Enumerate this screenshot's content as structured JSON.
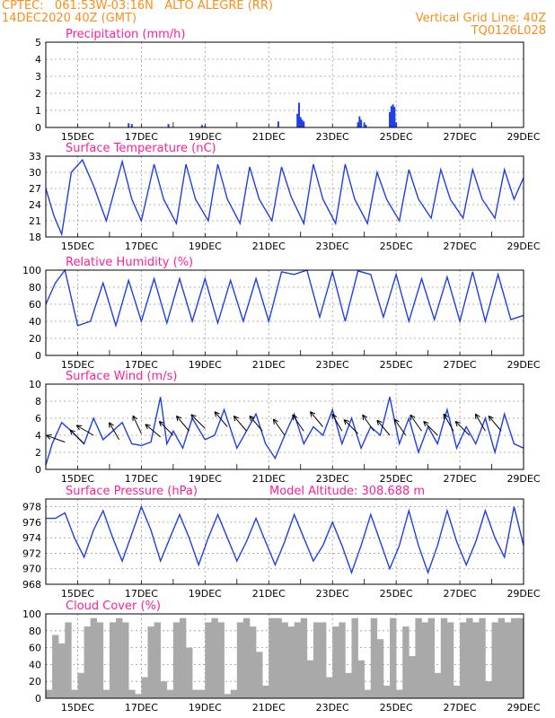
{
  "header": {
    "line1": "CPTEC:   061:53W-03:16N   ALTO ALEGRE (RR)",
    "line2": "14DEC2020 40Z (GMT)",
    "right1": "Vertical Grid Line: 40Z",
    "right2": "TQ0126L028"
  },
  "colors": {
    "series": "#1f3fe6",
    "clouds": "#a9a9a9",
    "title": "#ff1f9a",
    "header": "#ff8c1a"
  },
  "chart_data": [
    {
      "type": "bar",
      "title": "Precipitation (mm/h)",
      "x_ticks": [
        "15DEC",
        "17DEC",
        "19DEC",
        "21DEC",
        "23DEC",
        "25DEC",
        "27DEC",
        "29DEC"
      ],
      "ylim": [
        0,
        5
      ],
      "y_ticks": [
        0,
        1,
        2,
        3,
        4,
        5
      ],
      "grid": true,
      "x": [
        16.6,
        16.7,
        17.85,
        18.9,
        19.0,
        21.3,
        21.9,
        21.95,
        22.0,
        22.05,
        22.1,
        23.8,
        23.85,
        23.9,
        24.0,
        24.05,
        24.8,
        24.85,
        24.9,
        24.95,
        25.0
      ],
      "values": [
        0.25,
        0.2,
        0.2,
        0.15,
        0.1,
        0.35,
        0.8,
        1.45,
        0.6,
        0.45,
        0.35,
        0.3,
        0.65,
        0.45,
        0.25,
        0.15,
        0.9,
        1.25,
        1.35,
        1.2,
        0.3
      ]
    },
    {
      "type": "line",
      "title": "Surface Temperature (nC)",
      "x_ticks": [
        "15DEC",
        "17DEC",
        "19DEC",
        "21DEC",
        "23DEC",
        "25DEC",
        "27DEC",
        "29DEC"
      ],
      "ylim": [
        18,
        33
      ],
      "y_ticks": [
        18,
        21,
        24,
        27,
        30,
        33
      ],
      "grid": true,
      "series": [
        {
          "x": [
            14.0,
            14.25,
            14.5,
            14.8,
            15.15,
            15.5,
            15.9,
            16.4,
            16.7,
            17.0,
            17.4,
            17.7,
            18.1,
            18.4,
            18.7,
            19.1,
            19.4,
            19.7,
            20.1,
            20.4,
            20.7,
            21.1,
            21.4,
            21.7,
            22.1,
            22.4,
            22.7,
            23.1,
            23.4,
            23.7,
            24.1,
            24.4,
            24.7,
            25.1,
            25.4,
            25.7,
            26.1,
            26.4,
            26.7,
            27.1,
            27.4,
            27.7,
            28.1,
            28.4,
            28.7,
            29.0
          ],
          "y": [
            27,
            22,
            18.5,
            30,
            32.3,
            27.5,
            21,
            32,
            25,
            21,
            31.5,
            25,
            20.5,
            31.5,
            25,
            21,
            31.5,
            25,
            20.5,
            31,
            25,
            21,
            31,
            25.5,
            20.5,
            31.5,
            25,
            20.5,
            31.5,
            25,
            20.5,
            30,
            25,
            21,
            30.5,
            25,
            21.5,
            30.5,
            25,
            21.5,
            30.5,
            25,
            21.5,
            30.5,
            25,
            29
          ]
        }
      ]
    },
    {
      "type": "line",
      "title": "Relative Humidity (%)",
      "x_ticks": [
        "15DEC",
        "17DEC",
        "19DEC",
        "21DEC",
        "23DEC",
        "25DEC",
        "27DEC",
        "29DEC"
      ],
      "ylim": [
        0,
        100
      ],
      "y_ticks": [
        0,
        20,
        40,
        60,
        80,
        100
      ],
      "grid": true,
      "series": [
        {
          "x": [
            14.0,
            14.3,
            14.6,
            15.0,
            15.4,
            15.8,
            16.2,
            16.6,
            17.0,
            17.4,
            17.8,
            18.2,
            18.6,
            19.0,
            19.4,
            19.8,
            20.2,
            20.6,
            21.0,
            21.4,
            21.8,
            22.2,
            22.6,
            23.0,
            23.4,
            23.8,
            24.2,
            24.6,
            25.0,
            25.4,
            25.8,
            26.2,
            26.6,
            27.0,
            27.4,
            27.8,
            28.2,
            28.6,
            29.0
          ],
          "y": [
            60,
            85,
            100,
            35,
            40,
            85,
            35,
            88,
            40,
            90,
            38,
            90,
            40,
            90,
            38,
            88,
            40,
            90,
            40,
            98,
            95,
            100,
            45,
            98,
            40,
            99,
            95,
            45,
            95,
            40,
            90,
            42,
            92,
            40,
            98,
            40,
            95,
            42,
            47
          ]
        }
      ]
    },
    {
      "type": "line",
      "title": "Surface Wind (m/s)",
      "x_ticks": [
        "15DEC",
        "17DEC",
        "19DEC",
        "21DEC",
        "23DEC",
        "25DEC",
        "27DEC",
        "29DEC"
      ],
      "ylim": [
        0,
        10
      ],
      "y_ticks": [
        0,
        2,
        4,
        6,
        8,
        10
      ],
      "grid": true,
      "series": [
        {
          "x": [
            14.0,
            14.2,
            14.5,
            14.8,
            15.2,
            15.5,
            15.8,
            16.1,
            16.4,
            16.7,
            17.0,
            17.3,
            17.6,
            17.8,
            18.0,
            18.3,
            18.6,
            19.0,
            19.3,
            19.6,
            20.0,
            20.3,
            20.6,
            20.9,
            21.2,
            21.5,
            21.8,
            22.1,
            22.4,
            22.7,
            23.0,
            23.3,
            23.6,
            23.9,
            24.2,
            24.5,
            24.8,
            25.1,
            25.4,
            25.7,
            26.0,
            26.3,
            26.6,
            26.9,
            27.2,
            27.5,
            27.8,
            28.1,
            28.4,
            28.7,
            29.0
          ],
          "y": [
            0.5,
            3,
            5.5,
            4.5,
            3,
            6,
            3.5,
            4.5,
            5.5,
            3,
            2.8,
            3.2,
            8.5,
            3,
            4.5,
            2.5,
            6,
            3.5,
            4,
            7,
            2.5,
            4.5,
            6.5,
            3,
            1.3,
            4,
            6.5,
            3,
            5,
            4,
            7,
            3,
            6,
            2.5,
            5,
            4,
            8.5,
            3,
            6,
            2,
            5,
            3,
            7,
            2.5,
            5,
            3,
            6,
            2,
            6.5,
            3,
            2.5
          ]
        }
      ],
      "arrows": {
        "x": [
          14.6,
          15.2,
          15.5,
          16.3,
          17.0,
          17.6,
          18.0,
          18.5,
          19.0,
          19.7,
          20.3,
          20.8,
          21.5,
          22.1,
          22.7,
          23.3,
          23.8,
          24.3,
          24.8,
          25.3,
          25.8,
          26.3,
          26.8,
          27.3,
          27.8,
          28.3
        ],
        "speed": [
          3.2,
          3.0,
          4.0,
          3.5,
          4.2,
          3.8,
          4.0,
          4.5,
          4.8,
          5.0,
          4.5,
          4.5,
          4.0,
          4.5,
          5.0,
          4.5,
          4.2,
          4.5,
          4.0,
          4.0,
          4.5,
          4.0,
          4.5,
          4.0,
          4.5,
          4.5
        ],
        "dir_deg": [
          200,
          225,
          210,
          240,
          245,
          220,
          225,
          230,
          225,
          230,
          230,
          230,
          235,
          235,
          230,
          240,
          225,
          235,
          230,
          235,
          235,
          225,
          240,
          225,
          240,
          230
        ]
      }
    },
    {
      "type": "line",
      "title": "Surface Pressure (hPa)",
      "annotation": "Model Altitude: 308.688  m",
      "x_ticks": [
        "15DEC",
        "17DEC",
        "19DEC",
        "21DEC",
        "23DEC",
        "25DEC",
        "27DEC",
        "29DEC"
      ],
      "ylim": [
        968,
        979
      ],
      "y_ticks": [
        968,
        970,
        972,
        974,
        976,
        978
      ],
      "grid": true,
      "series": [
        {
          "x": [
            14.0,
            14.3,
            14.6,
            14.9,
            15.2,
            15.5,
            15.8,
            16.1,
            16.4,
            16.7,
            17.0,
            17.3,
            17.6,
            17.9,
            18.2,
            18.5,
            18.8,
            19.1,
            19.4,
            19.7,
            20.0,
            20.3,
            20.6,
            20.9,
            21.2,
            21.5,
            21.8,
            22.1,
            22.4,
            22.7,
            23.0,
            23.3,
            23.6,
            23.9,
            24.2,
            24.5,
            24.8,
            25.1,
            25.4,
            25.7,
            26.0,
            26.3,
            26.6,
            26.9,
            27.2,
            27.5,
            27.8,
            28.1,
            28.4,
            28.7,
            29.0
          ],
          "y": [
            976.5,
            976.5,
            977.2,
            974,
            971.5,
            975,
            977.5,
            974,
            971,
            974.5,
            978,
            975,
            971,
            974,
            977,
            974,
            970.5,
            974,
            977,
            974,
            971,
            973.5,
            976.5,
            973.5,
            970.5,
            973.5,
            977,
            974,
            971,
            973,
            976,
            973,
            969.5,
            973,
            977,
            973.5,
            970,
            973,
            977.5,
            973,
            969.5,
            973,
            977.5,
            973.5,
            970.5,
            973.5,
            977.5,
            974,
            971.5,
            978,
            973
          ]
        }
      ]
    },
    {
      "type": "bar",
      "title": "Cloud Cover (%)",
      "x_ticks": [
        "15DEC",
        "17DEC",
        "19DEC",
        "21DEC",
        "23DEC",
        "25DEC",
        "27DEC",
        "29DEC"
      ],
      "ylim": [
        0,
        100
      ],
      "y_ticks": [
        0,
        20,
        40,
        60,
        80,
        100
      ],
      "grid": true,
      "x": [
        14.0,
        14.2,
        14.4,
        14.6,
        14.8,
        15.0,
        15.2,
        15.4,
        15.6,
        15.8,
        16.0,
        16.2,
        16.4,
        16.6,
        16.8,
        17.0,
        17.2,
        17.4,
        17.6,
        17.8,
        18.0,
        18.2,
        18.4,
        18.6,
        18.8,
        19.0,
        19.2,
        19.4,
        19.6,
        19.8,
        20.0,
        20.2,
        20.4,
        20.6,
        20.8,
        21.0,
        21.2,
        21.4,
        21.6,
        21.8,
        22.0,
        22.2,
        22.4,
        22.6,
        22.8,
        23.0,
        23.2,
        23.4,
        23.6,
        23.8,
        24.0,
        24.2,
        24.4,
        24.6,
        24.8,
        25.0,
        25.2,
        25.4,
        25.6,
        25.8,
        26.0,
        26.2,
        26.4,
        26.6,
        26.8,
        27.0,
        27.2,
        27.4,
        27.6,
        27.8,
        28.0,
        28.2,
        28.4,
        28.6,
        28.8
      ],
      "values": [
        10,
        75,
        65,
        90,
        10,
        30,
        85,
        95,
        90,
        10,
        90,
        95,
        90,
        10,
        5,
        25,
        85,
        90,
        20,
        10,
        90,
        95,
        60,
        10,
        10,
        90,
        95,
        90,
        5,
        10,
        90,
        95,
        85,
        55,
        15,
        95,
        95,
        90,
        85,
        90,
        95,
        45,
        90,
        90,
        25,
        85,
        90,
        30,
        95,
        45,
        10,
        95,
        70,
        15,
        95,
        10,
        85,
        50,
        95,
        90,
        95,
        30,
        95,
        90,
        15,
        90,
        95,
        90,
        95,
        20,
        90,
        95,
        90,
        95,
        95
      ]
    }
  ]
}
